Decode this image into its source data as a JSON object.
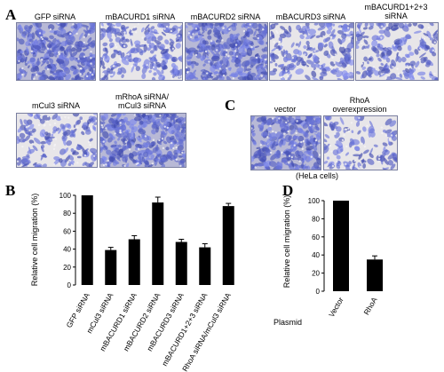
{
  "panels": {
    "A": {
      "letter": "A",
      "images": [
        {
          "label": "GFP siRNA",
          "density": 0.9
        },
        {
          "label": "mBACURD1 siRNA",
          "density": 0.55
        },
        {
          "label": "mBACURD2 siRNA",
          "density": 0.85
        },
        {
          "label": "mBACURD3 siRNA",
          "density": 0.5
        },
        {
          "label_lines": [
            "mBACURD1+2+3",
            "siRNA"
          ],
          "density": 0.45
        },
        {
          "label": "mCul3 siRNA",
          "density": 0.4
        },
        {
          "label_lines": [
            "mRhoA siRNA/",
            "mCul3 siRNA"
          ],
          "density": 0.85
        }
      ]
    },
    "C": {
      "letter": "C",
      "images": [
        {
          "label": "vector",
          "density": 0.85
        },
        {
          "label_lines": [
            "RhoA",
            "overexpression"
          ],
          "density": 0.35
        }
      ],
      "caption": "(HeLa cells)"
    },
    "B": {
      "letter": "B"
    },
    "D": {
      "letter": "D"
    }
  },
  "chart_data": [
    {
      "panel": "B",
      "type": "bar",
      "ylabel": "Relative cell migration (%)",
      "ylim": [
        0,
        100
      ],
      "yticks": [
        0,
        20,
        40,
        60,
        80,
        100
      ],
      "categories": [
        "GFP siRNA",
        "mCul3 siRNA",
        "mBACURD1 siRNA",
        "mBACURD2 siRNA",
        "mBACURD3 siRNA",
        "mBACURD1+2+3 siRNA",
        "RhoA siRNA/mCul3 siRNA"
      ],
      "values": [
        100,
        39,
        51,
        92,
        48,
        42,
        88
      ],
      "errors": [
        0,
        3,
        4,
        6,
        3,
        4,
        3
      ],
      "bar_color": "#000000"
    },
    {
      "panel": "D",
      "type": "bar",
      "ylabel": "Relative cell migration (%)",
      "ylim": [
        0,
        100
      ],
      "yticks": [
        0,
        20,
        40,
        60,
        80,
        100
      ],
      "x_title": "Plasmid",
      "categories": [
        "Vector",
        "RhoA"
      ],
      "values": [
        100,
        35
      ],
      "errors": [
        0,
        4
      ],
      "bar_color": "#000000"
    }
  ]
}
